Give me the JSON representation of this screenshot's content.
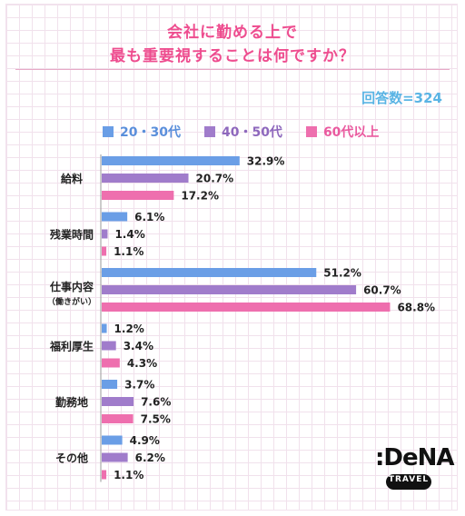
{
  "chart_data": {
    "type": "bar",
    "orientation": "horizontal",
    "title": [
      "会社に勤める上で",
      "最も重要視することは何ですか？"
    ],
    "respondents_label": "回答数=324",
    "xlabel": "",
    "ylabel": "",
    "unit": "%",
    "grid": false,
    "legend_position": "top",
    "categories": [
      {
        "label": "給料",
        "sub": ""
      },
      {
        "label": "残業時間",
        "sub": ""
      },
      {
        "label": "仕事内容",
        "sub": "（働きがい）"
      },
      {
        "label": "福利厚生",
        "sub": ""
      },
      {
        "label": "勤務地",
        "sub": ""
      },
      {
        "label": "その他",
        "sub": ""
      }
    ],
    "series": [
      {
        "name": "20・30代",
        "color": "#6a9ee6",
        "text_color": "#5a8fdb",
        "values": [
          32.9,
          6.1,
          51.2,
          1.2,
          3.7,
          4.9
        ]
      },
      {
        "name": "40・50代",
        "color": "#a07ccb",
        "text_color": "#8e68bd",
        "values": [
          20.7,
          1.4,
          60.7,
          3.4,
          7.6,
          6.2
        ]
      },
      {
        "name": "60代以上",
        "color": "#ee6fae",
        "text_color": "#ea5a9f",
        "values": [
          17.2,
          1.1,
          68.8,
          4.3,
          7.5,
          1.1
        ]
      }
    ],
    "xlim": [
      0,
      70
    ]
  },
  "logo": {
    "brand": ":DeNA",
    "sub": "TRAVEL"
  }
}
